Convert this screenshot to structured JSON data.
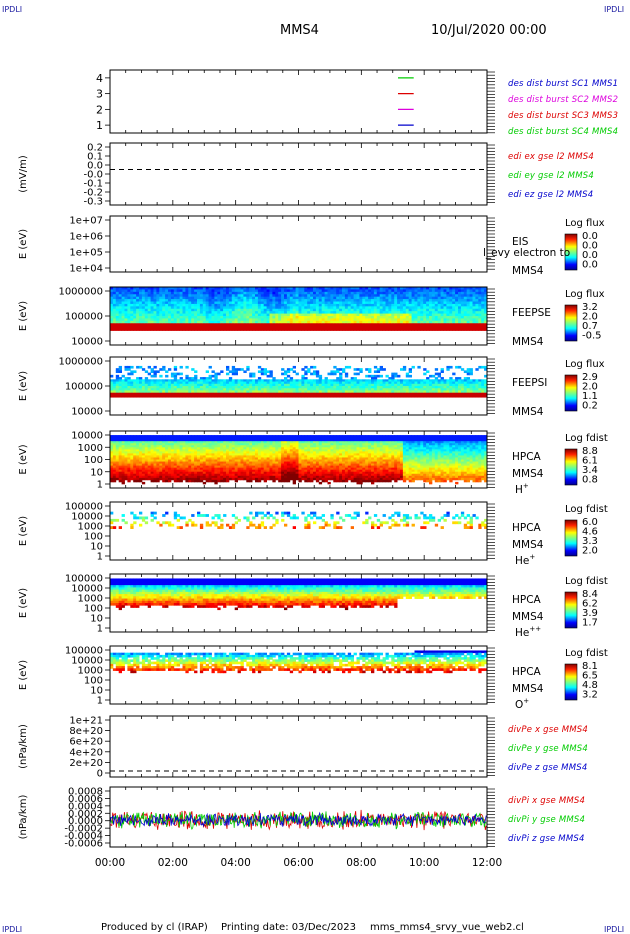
{
  "header": {
    "title": "MMS4",
    "date": "10/Jul/2020 00:00",
    "corner_mark": "IPDLI"
  },
  "footer": {
    "produced_by": "Produced by cl (IRAP)",
    "printing_date": "Printing date: 03/Dec/2023",
    "file": "mms_mms4_srvy_vue_web2.cl"
  },
  "colors": {
    "blue": "#0000cc",
    "red": "#dd0000",
    "magenta": "#dd00dd",
    "green": "#00cc00"
  },
  "chart_data": [
    {
      "type": "line",
      "panel": "burst",
      "yticks": [
        "4",
        "3",
        "2",
        "1"
      ],
      "ylim": [
        0.5,
        4.5
      ],
      "legend": [
        {
          "label": "des dist burst SC1 MMS1",
          "color": "#0000cc"
        },
        {
          "label": "des dist burst SC2 MMS2",
          "color": "#dd00dd"
        },
        {
          "label": "des dist burst SC3 MMS3",
          "color": "#dd0000"
        },
        {
          "label": "des dist burst SC4 MMS4",
          "color": "#00cc00"
        }
      ],
      "series": [
        {
          "color": "#00cc00",
          "y": 4.0,
          "x": [
            "09:10",
            "09:40"
          ]
        },
        {
          "color": "#dd0000",
          "y": 3.0,
          "x": [
            "09:10",
            "09:40"
          ]
        },
        {
          "color": "#dd00dd",
          "y": 2.0,
          "x": [
            "09:10",
            "09:40"
          ]
        },
        {
          "color": "#0000cc",
          "y": 1.0,
          "x": [
            "09:10",
            "09:40"
          ]
        }
      ]
    },
    {
      "type": "line",
      "panel": "edi",
      "ylabel": "(mV/m)",
      "ylim": [
        -0.35,
        0.25
      ],
      "yticks": [
        "0.2",
        "0.1",
        "0.0",
        "-0.0",
        "-0.1",
        "-0.2",
        "-0.3"
      ],
      "legend": [
        {
          "label": "edi ex gse l2 MMS4",
          "color": "#dd0000"
        },
        {
          "label": "edi ey gse l2 MMS4",
          "color": "#00cc00"
        },
        {
          "label": "edi ez gse l2 MMS4",
          "color": "#0000cc"
        }
      ],
      "series": [
        {
          "name": "dashed zero",
          "y": 0.0
        }
      ]
    },
    {
      "type": "heatmap",
      "panel": "eis",
      "ylabel": "E (eV)",
      "yticks": [
        "1e+07",
        "1e+06",
        "1e+05",
        "1e+04"
      ],
      "side": [
        "EIS",
        "MMS4"
      ],
      "overlay_text": "l_evy electron to",
      "colorbar": {
        "title": "Log flux",
        "ticks": [
          "0.0",
          "0.0",
          "0.0",
          "0.0"
        ]
      }
    },
    {
      "type": "heatmap",
      "panel": "feepse",
      "ylabel": "E (eV)",
      "yticks": [
        "1000000",
        "100000",
        "10000"
      ],
      "side": [
        "FEEPSE",
        "MMS4"
      ],
      "colorbar": {
        "title": "Log flux",
        "ticks": [
          "3.2",
          "2.0",
          "0.7",
          "-0.5"
        ]
      }
    },
    {
      "type": "heatmap",
      "panel": "feepsi",
      "ylabel": "E (eV)",
      "yticks": [
        "1000000",
        "100000",
        "10000"
      ],
      "side": [
        "FEEPSI",
        "MMS4"
      ],
      "colorbar": {
        "title": "Log flux",
        "ticks": [
          "2.9",
          "2.0",
          "1.1",
          "0.2"
        ]
      }
    },
    {
      "type": "heatmap",
      "panel": "hpca_h",
      "ylabel": "E (eV)",
      "yticks": [
        "10000",
        "1000",
        "100",
        "10",
        "1"
      ],
      "side": [
        "HPCA",
        "MMS4"
      ],
      "species": "H",
      "species_sup": "+",
      "colorbar": {
        "title": "Log fdist",
        "ticks": [
          "8.8",
          "6.1",
          "3.4",
          "0.8"
        ]
      }
    },
    {
      "type": "heatmap",
      "panel": "hpca_he",
      "ylabel": "E (eV)",
      "yticks": [
        "100000",
        "10000",
        "1000",
        "100",
        "10",
        "1"
      ],
      "side": [
        "HPCA",
        "MMS4"
      ],
      "species": "He",
      "species_sup": "+",
      "colorbar": {
        "title": "Log fdist",
        "ticks": [
          "6.0",
          "4.6",
          "3.3",
          "2.0"
        ]
      }
    },
    {
      "type": "heatmap",
      "panel": "hpca_he2",
      "ylabel": "E (eV)",
      "yticks": [
        "100000",
        "10000",
        "1000",
        "100",
        "10",
        "1"
      ],
      "side": [
        "HPCA",
        "MMS4"
      ],
      "species": "He",
      "species_sup": "++",
      "colorbar": {
        "title": "Log fdist",
        "ticks": [
          "8.4",
          "6.2",
          "3.9",
          "1.7"
        ]
      }
    },
    {
      "type": "heatmap",
      "panel": "hpca_o",
      "ylabel": "E (eV)",
      "yticks": [
        "100000",
        "10000",
        "1000",
        "100",
        "10",
        "1"
      ],
      "side": [
        "HPCA",
        "MMS4"
      ],
      "species": "O",
      "species_sup": "+",
      "colorbar": {
        "title": "Log fdist",
        "ticks": [
          "8.1",
          "6.5",
          "4.8",
          "3.2"
        ]
      }
    },
    {
      "type": "line",
      "panel": "divpe",
      "ylabel": "(nPa/km)",
      "yticks": [
        "1e+21",
        "8e+20",
        "6e+20",
        "4e+20",
        "2e+20",
        "0"
      ],
      "legend": [
        {
          "label": "divPe x gse MMS4",
          "color": "#dd0000"
        },
        {
          "label": "divPe y gse MMS4",
          "color": "#00cc00"
        },
        {
          "label": "divPe z gse MMS4",
          "color": "#0000cc"
        }
      ],
      "series": [
        {
          "name": "dashed zero",
          "y": 0
        }
      ]
    },
    {
      "type": "line",
      "panel": "divpi",
      "ylabel": "(nPa/km)",
      "yticks": [
        "0.0008",
        "0.0006",
        "0.0004",
        "0.0002",
        "0.0000",
        "-0.0002",
        "-0.0004",
        "-0.0006"
      ],
      "legend": [
        {
          "label": "divPi x gse MMS4",
          "color": "#dd0000"
        },
        {
          "label": "divPi y gse MMS4",
          "color": "#00cc00"
        },
        {
          "label": "divPi z gse MMS4",
          "color": "#0000cc"
        }
      ],
      "series": [
        {
          "name": "noise band",
          "ylim": [
            -0.0006,
            0.0008
          ],
          "center": -0.0001
        }
      ]
    }
  ],
  "xaxis": {
    "ticks": [
      "00:00",
      "02:00",
      "04:00",
      "06:00",
      "08:00",
      "10:00",
      "12:00"
    ]
  }
}
